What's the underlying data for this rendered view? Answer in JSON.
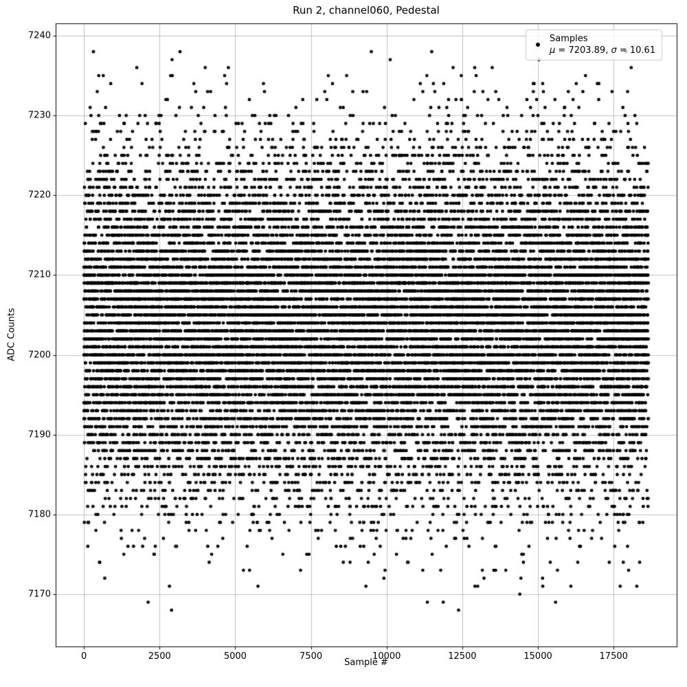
{
  "chart_data": {
    "type": "scatter",
    "title": "Run 2, channel060, Pedestal",
    "xlabel": "Sample #",
    "ylabel": "ADC Counts",
    "grid": true,
    "grid_color": "#b0b0b0",
    "marker_color": "#000000",
    "marker_radius_px": 2.4,
    "x_ticks": [
      0,
      2500,
      5000,
      7500,
      10000,
      12500,
      15000,
      17500
    ],
    "y_ticks": [
      7170,
      7180,
      7190,
      7200,
      7210,
      7220,
      7230,
      7240
    ],
    "xlim": [
      -932.5,
      19582.5
    ],
    "ylim": [
      7163.45,
      7241.55
    ],
    "n_points": 18650,
    "x_min": 0,
    "x_max": 18649,
    "y_distribution": {
      "type": "gaussian_rounded_to_integer",
      "mu": 7203.89,
      "sigma": 10.61,
      "observed_min": 7167,
      "observed_max": 7238
    },
    "seed": 1337,
    "legend": {
      "position": "upper right",
      "line1": "Samples",
      "mu_symbol": "μ",
      "mu_value": " = 7203.89, ",
      "sigma_symbol": "σ",
      "sigma_value": " = 10.61"
    }
  }
}
